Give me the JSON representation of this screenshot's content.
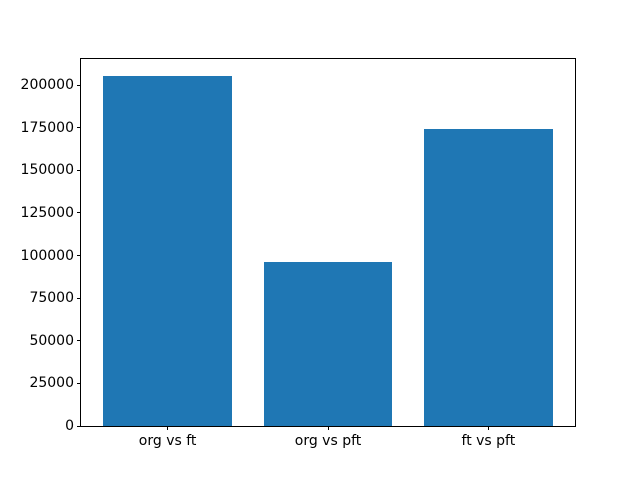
{
  "chart_data": {
    "type": "bar",
    "title": "",
    "xlabel": "",
    "ylabel": "",
    "categories": [
      "org vs ft",
      "org vs pft",
      "ft vs pft"
    ],
    "values": [
      205000,
      96000,
      174000
    ],
    "yticks": [
      0,
      25000,
      50000,
      75000,
      100000,
      125000,
      150000,
      175000,
      200000
    ],
    "ylim": [
      0,
      215250
    ],
    "xlim": [
      -0.54,
      2.54
    ],
    "bar_width": 0.8,
    "bar_color": "#1f77b4",
    "grid": false,
    "legend": false
  },
  "figure": {
    "background": "#ffffff",
    "spine_color": "#000000",
    "tick_label_color": "#000000"
  }
}
